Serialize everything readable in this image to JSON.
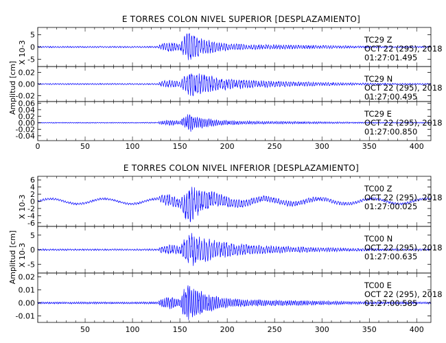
{
  "colors": {
    "trace": "#0000ff",
    "axis": "#000000",
    "background": "#ffffff"
  },
  "chart_data": [
    {
      "type": "line",
      "title": "E TORRES COLON NIVEL SUPERIOR [DESPLAZAMIENTO]",
      "ylabel": "Amplitud [cm]",
      "xlim": [
        0,
        415
      ],
      "x_ticks": [
        "0",
        "50",
        "100",
        "150",
        "200",
        "250",
        "300",
        "350",
        "400"
      ],
      "panels": [
        {
          "channel_label": "TC29   Z",
          "date_label": "OCT  22 (295), 2018",
          "time_label": "01:27:01.495",
          "scale_label": "X 10-3",
          "y_ticks": [
            "5",
            "0",
            "-5"
          ],
          "y_tick_values": [
            5,
            0,
            -5
          ],
          "ylim": [
            -8,
            8
          ],
          "amplitude": 6.5
        },
        {
          "channel_label": "TC29   N",
          "date_label": "OCT  22 (295), 2018",
          "time_label": "01:27:00.495",
          "y_ticks": [
            "0.02",
            "0.00",
            "-0.02"
          ],
          "y_tick_values": [
            0.02,
            0.0,
            -0.02
          ],
          "ylim": [
            -0.03,
            0.03
          ],
          "amplitude": 0.024
        },
        {
          "channel_label": "TC29   E",
          "date_label": "OCT  22 (295), 2018",
          "time_label": "01:27:00.850",
          "y_ticks": [
            "0.06",
            "0.04",
            "0.02",
            "0.00",
            "-0.02",
            "-0.04"
          ],
          "y_tick_values": [
            0.06,
            0.04,
            0.02,
            0.0,
            -0.02,
            -0.04
          ],
          "ylim": [
            -0.055,
            0.065
          ],
          "amplitude": 0.03
        }
      ]
    },
    {
      "type": "line",
      "title": "E TORRES COLON NIVEL INFERIOR [DESPLAZAMIENTO]",
      "ylabel": "Amplitud [cm]",
      "xlim": [
        0,
        415
      ],
      "x_ticks": [
        "50",
        "100",
        "150",
        "200",
        "250",
        "300",
        "350",
        "400"
      ],
      "panels": [
        {
          "channel_label": "TC00   Z",
          "date_label": "OCT  22 (295), 2018",
          "time_label": "01:27:00.025",
          "scale_label": "X 10-3",
          "y_ticks": [
            "6",
            "4",
            "2",
            "0",
            "-2",
            "-4",
            "-6"
          ],
          "y_tick_values": [
            6,
            4,
            2,
            0,
            -2,
            -4,
            -6
          ],
          "ylim": [
            -7,
            7
          ],
          "amplitude": 6
        },
        {
          "channel_label": "TC00   N",
          "date_label": "OCT  22 (295), 2018",
          "time_label": "01:27:00.635",
          "scale_label": "X 10-3",
          "y_ticks": [
            "5",
            "0",
            "-5"
          ],
          "y_tick_values": [
            5,
            0,
            -5
          ],
          "ylim": [
            -8,
            8
          ],
          "amplitude": 6
        },
        {
          "channel_label": "TC00   E",
          "date_label": "OCT  22 (295), 2018",
          "time_label": "01:27:00.585",
          "y_ticks": [
            "0.02",
            "0.01",
            "0.00",
            "-0.01"
          ],
          "y_tick_values": [
            0.02,
            0.01,
            0.0,
            -0.01
          ],
          "ylim": [
            -0.015,
            0.023
          ],
          "amplitude": 0.016
        }
      ]
    }
  ]
}
